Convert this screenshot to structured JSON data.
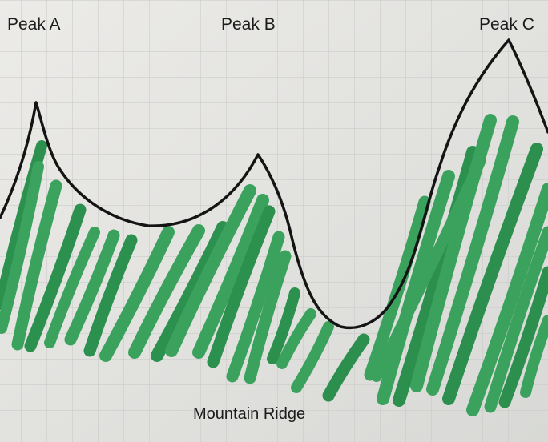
{
  "peaks": [
    {
      "id": "A",
      "label": "Peak A"
    },
    {
      "id": "B",
      "label": "Peak B"
    },
    {
      "id": "C",
      "label": "Peak C"
    }
  ],
  "caption": "Mountain Ridge",
  "colors": {
    "paper": "#e3e3e1",
    "grid": "#c4c6c4",
    "ridge_line": "#141414",
    "hatching": "#2f9e55",
    "hatching_dark": "#1f8a44"
  }
}
